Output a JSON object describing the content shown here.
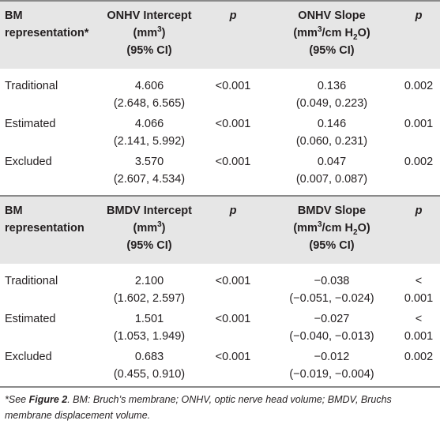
{
  "tables": [
    {
      "header": {
        "rep_line1": "BM",
        "rep_line2": "representation*",
        "int_line1": "ONHV Intercept",
        "int_line2_pre": "(mm",
        "int_line2_sup": "3",
        "int_line2_post": ")",
        "int_line3": "(95% CI)",
        "p": "p",
        "slope_line1": "ONHV Slope",
        "slope_line2_pre": "(mm",
        "slope_line2_sup": "3",
        "slope_line2_mid": "/cm H",
        "slope_line2_sub": "2",
        "slope_line2_post": "O)",
        "slope_line3": "(95% CI)",
        "p2": "p"
      },
      "rows": [
        {
          "label": "Traditional",
          "intercept": "4.606",
          "intercept_ci": "(2.648, 6.565)",
          "p1": "<0.001",
          "slope": "0.136",
          "slope_ci": "(0.049, 0.223)",
          "p2": "0.002",
          "p2b": ""
        },
        {
          "label": "Estimated",
          "intercept": "4.066",
          "intercept_ci": "(2.141, 5.992)",
          "p1": "<0.001",
          "slope": "0.146",
          "slope_ci": "(0.060, 0.231)",
          "p2": "0.001",
          "p2b": ""
        },
        {
          "label": "Excluded",
          "intercept": "3.570",
          "intercept_ci": "(2.607, 4.534)",
          "p1": "<0.001",
          "slope": "0.047",
          "slope_ci": "(0.007, 0.087)",
          "p2": "0.002",
          "p2b": ""
        }
      ]
    },
    {
      "header": {
        "rep_line1": "BM",
        "rep_line2": "representation",
        "int_line1": "BMDV Intercept",
        "int_line2_pre": "(mm",
        "int_line2_sup": "3",
        "int_line2_post": ")",
        "int_line3": "(95% CI)",
        "p": "p",
        "slope_line1": "BMDV Slope",
        "slope_line2_pre": "(mm",
        "slope_line2_sup": "3",
        "slope_line2_mid": "/cm H",
        "slope_line2_sub": "2",
        "slope_line2_post": "O)",
        "slope_line3": "(95% CI)",
        "p2": "p"
      },
      "rows": [
        {
          "label": "Traditional",
          "intercept": "2.100",
          "intercept_ci": "(1.602, 2.597)",
          "p1": "<0.001",
          "slope": "−0.038",
          "slope_ci": "(−0.051, −0.024)",
          "p2": "<",
          "p2b": "0.001"
        },
        {
          "label": "Estimated",
          "intercept": "1.501",
          "intercept_ci": "(1.053, 1.949)",
          "p1": "<0.001",
          "slope": "−0.027",
          "slope_ci": "(−0.040, −0.013)",
          "p2": "<",
          "p2b": "0.001"
        },
        {
          "label": "Excluded",
          "intercept": "0.683",
          "intercept_ci": "(0.455, 0.910)",
          "p1": "<0.001",
          "slope": "−0.012",
          "slope_ci": "(−0.019, −0.004)",
          "p2": "0.002",
          "p2b": ""
        }
      ]
    }
  ],
  "footnote": {
    "pre": "*See ",
    "ref": "Figure 2",
    "post": ". BM: Bruch’s membrane; ONHV, optic nerve head volume; BMDV, Bruchs membrane displacement volume."
  }
}
